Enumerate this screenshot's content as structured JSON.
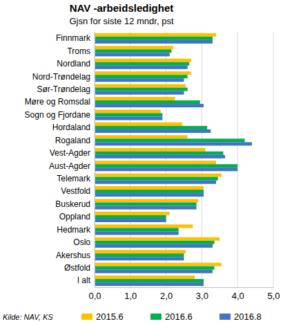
{
  "chart_data": {
    "type": "bar",
    "orientation": "horizontal",
    "title": "NAV -arbeidsledighet",
    "subtitle": "Gjsn for siste 12 mndr, pst",
    "annotations": [
      "Kilde: NAV, KS"
    ],
    "categories": [
      "Finnmark",
      "Troms",
      "Nordland",
      "Nord-Trøndelag",
      "Sør-Trøndelag",
      "Møre og Romsdal",
      "Sogn og Fjordane",
      "Hordaland",
      "Rogaland",
      "Vest-Agder",
      "Aust-Agder",
      "Telemark",
      "Vestfold",
      "Buskerud",
      "Oppland",
      "Hedmark",
      "Oslo",
      "Akershus",
      "Østfold",
      "I alt"
    ],
    "series": [
      {
        "name": "2015.6",
        "color": "#ffc000",
        "values": [
          3.4,
          2.2,
          2.7,
          2.7,
          2.55,
          2.25,
          1.85,
          2.45,
          2.6,
          3.1,
          3.4,
          3.55,
          3.05,
          2.9,
          2.1,
          2.75,
          3.5,
          2.55,
          3.55,
          2.8
        ]
      },
      {
        "name": "2016.6",
        "color": "#00b050",
        "values": [
          3.3,
          2.15,
          2.65,
          2.6,
          2.6,
          2.95,
          1.9,
          3.15,
          4.2,
          3.6,
          4.0,
          3.45,
          3.05,
          2.85,
          2.0,
          2.35,
          3.35,
          2.5,
          3.35,
          3.05
        ]
      },
      {
        "name": "2016.8",
        "color": "#4472c4",
        "values": [
          3.3,
          2.1,
          2.6,
          2.5,
          2.5,
          3.05,
          1.9,
          3.25,
          4.4,
          3.65,
          4.0,
          3.4,
          3.05,
          2.85,
          2.0,
          2.35,
          3.3,
          2.5,
          3.3,
          3.05
        ]
      }
    ],
    "xlim": [
      0,
      5
    ],
    "xticks": [
      {
        "value": 0,
        "label": "0,0"
      },
      {
        "value": 1,
        "label": "1,0"
      },
      {
        "value": 2,
        "label": "2,0"
      },
      {
        "value": 3,
        "label": "3,0"
      },
      {
        "value": 4,
        "label": "4,0"
      },
      {
        "value": 5,
        "label": "5,0"
      }
    ],
    "grid": true,
    "legend": "bottom"
  }
}
